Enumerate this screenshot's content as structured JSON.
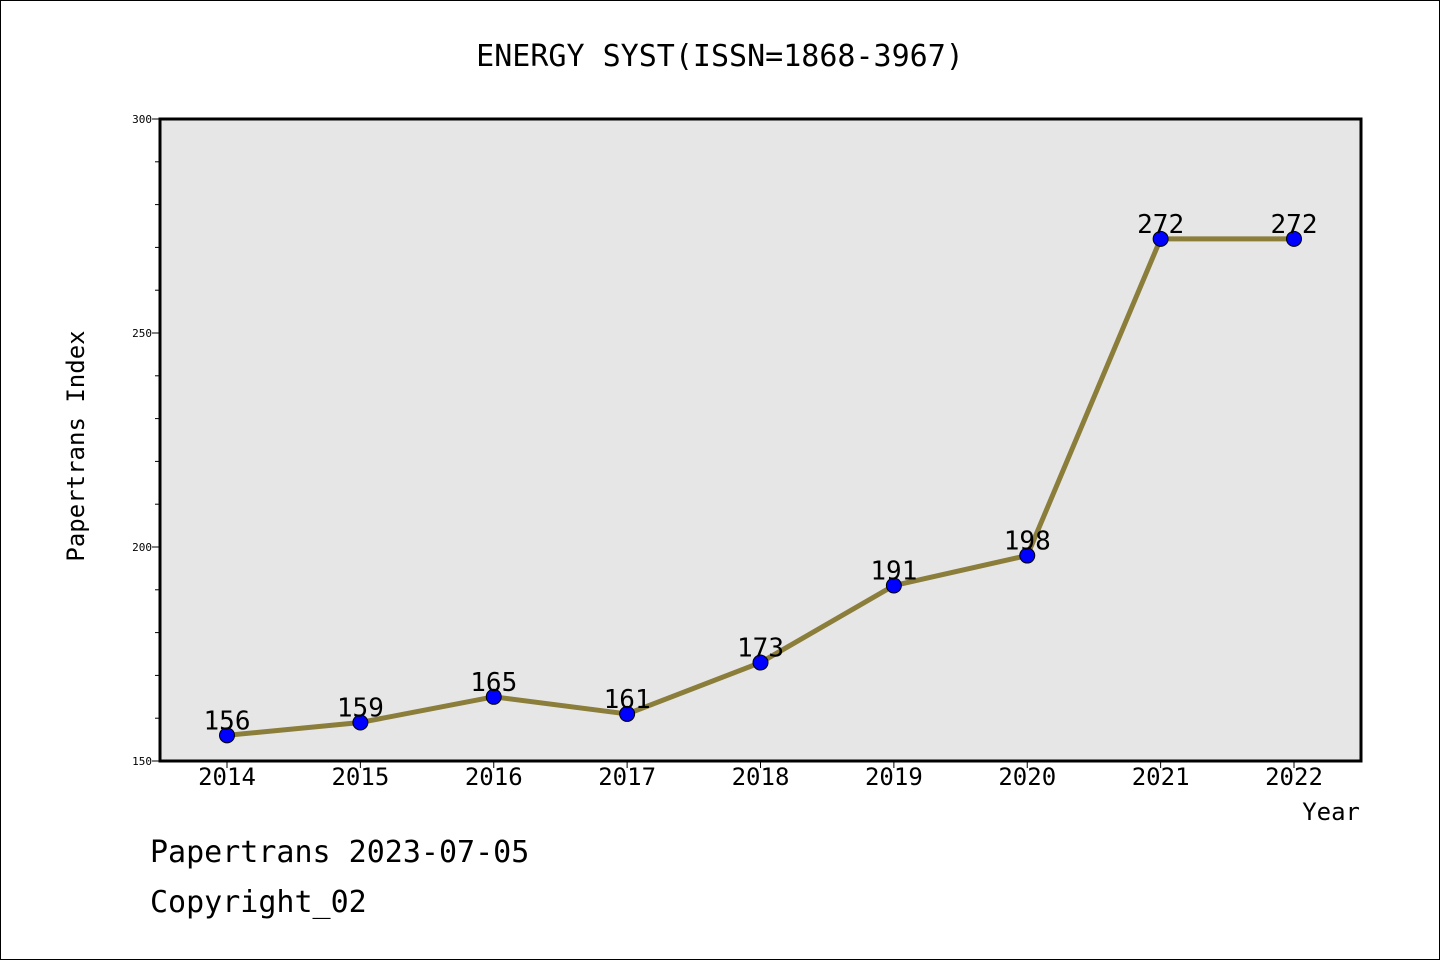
{
  "footer": {
    "line1": "Papertrans 2023-07-05",
    "line2": "Copyright_02"
  },
  "chart_data": {
    "type": "line",
    "title": "ENERGY SYST(ISSN=1868-3967)",
    "xlabel": "Year",
    "ylabel": "Papertrans Index",
    "categories": [
      "2014",
      "2015",
      "2016",
      "2017",
      "2018",
      "2019",
      "2020",
      "2021",
      "2022"
    ],
    "series": [
      {
        "values": [
          156,
          159,
          165,
          161,
          173,
          191,
          198,
          272,
          272
        ]
      }
    ],
    "ylim": [
      150,
      300
    ],
    "yticks": [
      "150",
      "200",
      "250",
      "300"
    ],
    "y_minor_step": 10,
    "grid": false,
    "legend": "none",
    "colors": {
      "line": "#8B7D3A",
      "marker": "#0000FF",
      "plot_background": "#E6E6E6"
    }
  }
}
